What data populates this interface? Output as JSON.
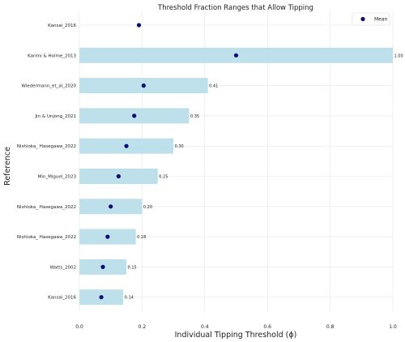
{
  "chart_data": {
    "type": "bar",
    "orientation": "horizontal",
    "title": "Threshold Fraction Ranges that Allow Tipping",
    "xlabel": "Individual Tipping Threshold (ϕ)",
    "ylabel": "Reference",
    "xlim": [
      0,
      1
    ],
    "xticks": [
      "0.0",
      "0.2",
      "0.4",
      "0.6",
      "0.8",
      "1.0"
    ],
    "grid": true,
    "legend": {
      "placement": "top-right",
      "entries": [
        "Mean"
      ]
    },
    "colors": {
      "bar": "#bde0ea",
      "mean": "#0d0d73",
      "grid": "#e6e6e6"
    },
    "rows": [
      {
        "reference": "Kansai_2016",
        "range_max": null,
        "label": "",
        "mean": 0.19
      },
      {
        "reference": "Karimi & Holme_2013",
        "range_max": 1.0,
        "label": "1.00",
        "mean": 0.5
      },
      {
        "reference": "Wiedermann_et_al_2020",
        "range_max": 0.41,
        "label": "0.41",
        "mean": 0.205
      },
      {
        "reference": "Jin & Unjong_2021",
        "range_max": 0.35,
        "label": "0.35",
        "mean": 0.175
      },
      {
        "reference": "Nishioka_ Hasegawa_2022",
        "range_max": 0.3,
        "label": "0.30",
        "mean": 0.15
      },
      {
        "reference": "Min_Miguel_2023",
        "range_max": 0.25,
        "label": "0.25",
        "mean": 0.125
      },
      {
        "reference": "Nishioka_ Hasegawa_2022",
        "range_max": 0.2,
        "label": "0.20",
        "mean": 0.1
      },
      {
        "reference": "Nishioka_ Hasegawa_2022",
        "range_max": 0.18,
        "label": "0.18",
        "mean": 0.09
      },
      {
        "reference": "Watts_2002",
        "range_max": 0.15,
        "label": "0.15",
        "mean": 0.075
      },
      {
        "reference": "Kansai_2016",
        "range_max": 0.14,
        "label": "0.14",
        "mean": 0.07
      }
    ]
  }
}
